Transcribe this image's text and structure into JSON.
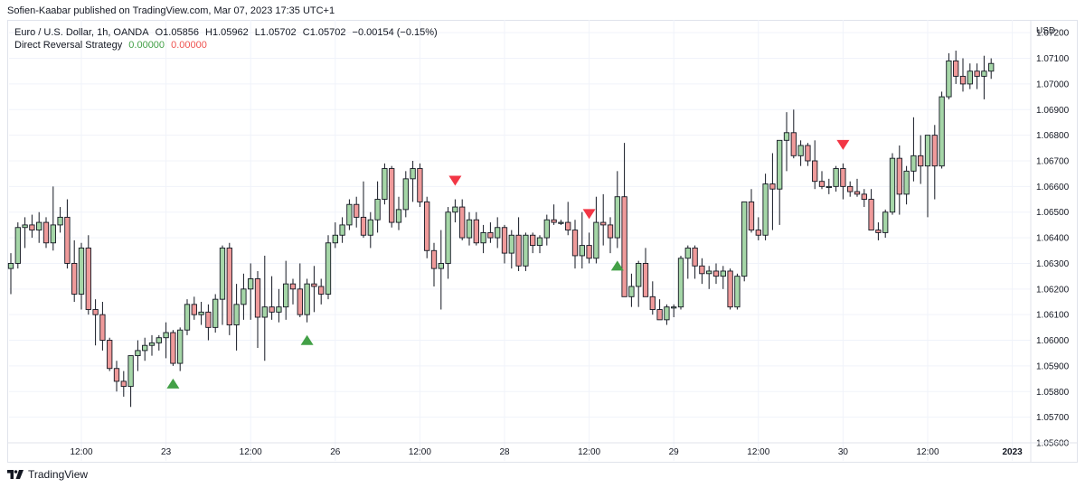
{
  "header": {
    "published": "Sofien-Kaabar published on TradingView.com, Mar 07, 2023 17:35 UTC+1"
  },
  "legend": {
    "symbol": "Euro / U.S. Dollar, 1h, OANDA",
    "open": "O1.05856",
    "high": "H1.05962",
    "low": "L1.05702",
    "close": "C1.05702",
    "change": "−0.00154 (−0.15%)",
    "indicator_name": "Direct Reversal Strategy",
    "indicator_value_1": "0.00000",
    "indicator_value_2": "0.00000"
  },
  "footer": {
    "brand": "TradingView"
  },
  "colors": {
    "bull_fill": "#a5d6a7",
    "bear_fill": "#ef9a9a",
    "outline": "#131722",
    "buy_signal": "#43a047",
    "sell_signal": "#f23645",
    "grid": "#f0f3fa"
  },
  "chart_data": {
    "type": "candlestick",
    "currency": "USD",
    "ylim": [
      1.056,
      1.0725
    ],
    "y_ticks": [
      "1.07200",
      "1.07100",
      "1.07000",
      "1.06900",
      "1.06800",
      "1.06700",
      "1.06600",
      "1.06500",
      "1.06400",
      "1.06300",
      "1.06200",
      "1.06100",
      "1.06000",
      "1.05900",
      "1.05800",
      "1.05700",
      "1.05600"
    ],
    "x_ticks": [
      {
        "label": "12:00",
        "index": 10
      },
      {
        "label": "23",
        "index": 22
      },
      {
        "label": "12:00",
        "index": 34
      },
      {
        "label": "26",
        "index": 46
      },
      {
        "label": "12:00",
        "index": 58
      },
      {
        "label": "28",
        "index": 70
      },
      {
        "label": "12:00",
        "index": 82
      },
      {
        "label": "29",
        "index": 94
      },
      {
        "label": "12:00",
        "index": 106
      },
      {
        "label": "30",
        "index": 118
      },
      {
        "label": "12:00",
        "index": 130
      },
      {
        "label": "2023",
        "index": 142
      }
    ],
    "candles": [
      [
        1.0628,
        1.0634,
        1.0618,
        1.063
      ],
      [
        1.063,
        1.0646,
        1.0628,
        1.0644
      ],
      [
        1.0644,
        1.0648,
        1.0636,
        1.0645
      ],
      [
        1.0645,
        1.0649,
        1.064,
        1.0643
      ],
      [
        1.0643,
        1.065,
        1.0638,
        1.0646
      ],
      [
        1.0646,
        1.0648,
        1.0636,
        1.0638
      ],
      [
        1.0638,
        1.066,
        1.0635,
        1.0645
      ],
      [
        1.0645,
        1.0652,
        1.0642,
        1.0648
      ],
      [
        1.0648,
        1.0655,
        1.0628,
        1.063
      ],
      [
        1.063,
        1.0639,
        1.0615,
        1.0618
      ],
      [
        1.0618,
        1.0638,
        1.0612,
        1.0636
      ],
      [
        1.0636,
        1.0641,
        1.061,
        1.0612
      ],
      [
        1.0612,
        1.0616,
        1.0598,
        1.061
      ],
      [
        1.061,
        1.0615,
        1.0596,
        1.06
      ],
      [
        1.06,
        1.0601,
        1.0588,
        1.0589
      ],
      [
        1.0589,
        1.0592,
        1.058,
        1.0584
      ],
      [
        1.0584,
        1.0588,
        1.0578,
        1.0582
      ],
      [
        1.0582,
        1.0594,
        1.0574,
        1.0594
      ],
      [
        1.0594,
        1.06,
        1.0588,
        1.0596
      ],
      [
        1.0596,
        1.0601,
        1.0592,
        1.0598
      ],
      [
        1.0598,
        1.0602,
        1.0594,
        1.0599
      ],
      [
        1.0599,
        1.0602,
        1.0596,
        1.0601
      ],
      [
        1.0601,
        1.0607,
        1.0593,
        1.0603
      ],
      [
        1.0603,
        1.0604,
        1.059,
        1.0591
      ],
      [
        1.0591,
        1.0605,
        1.0588,
        1.0604
      ],
      [
        1.0604,
        1.0616,
        1.0602,
        1.0614
      ],
      [
        1.0614,
        1.0617,
        1.0608,
        1.061
      ],
      [
        1.061,
        1.0615,
        1.0606,
        1.0611
      ],
      [
        1.0611,
        1.0614,
        1.06,
        1.0605
      ],
      [
        1.0605,
        1.0618,
        1.0603,
        1.0616
      ],
      [
        1.0616,
        1.0637,
        1.0606,
        1.0636
      ],
      [
        1.0636,
        1.0638,
        1.0602,
        1.0606
      ],
      [
        1.0606,
        1.0622,
        1.0596,
        1.0614
      ],
      [
        1.0614,
        1.0626,
        1.0608,
        1.062
      ],
      [
        1.062,
        1.063,
        1.0608,
        1.0624
      ],
      [
        1.0624,
        1.0627,
        1.0597,
        1.0609
      ],
      [
        1.0609,
        1.0633,
        1.0592,
        1.0613
      ],
      [
        1.0613,
        1.0625,
        1.0608,
        1.0611
      ],
      [
        1.0611,
        1.062,
        1.0607,
        1.0613
      ],
      [
        1.0613,
        1.0631,
        1.0608,
        1.0622
      ],
      [
        1.0622,
        1.0624,
        1.0614,
        1.062
      ],
      [
        1.062,
        1.063,
        1.0609,
        1.061
      ],
      [
        1.061,
        1.0624,
        1.0607,
        1.0622
      ],
      [
        1.0622,
        1.0629,
        1.0611,
        1.0621
      ],
      [
        1.0621,
        1.0624,
        1.0614,
        1.0618
      ],
      [
        1.0618,
        1.0641,
        1.0616,
        1.0638
      ],
      [
        1.0638,
        1.0646,
        1.0636,
        1.0641
      ],
      [
        1.0641,
        1.0648,
        1.0638,
        1.0645
      ],
      [
        1.0645,
        1.0655,
        1.0643,
        1.0653
      ],
      [
        1.0653,
        1.0656,
        1.0644,
        1.0648
      ],
      [
        1.0648,
        1.0662,
        1.064,
        1.0641
      ],
      [
        1.0641,
        1.065,
        1.0636,
        1.0647
      ],
      [
        1.0647,
        1.0662,
        1.0642,
        1.0655
      ],
      [
        1.0655,
        1.0669,
        1.0653,
        1.0667
      ],
      [
        1.0667,
        1.0668,
        1.0644,
        1.0646
      ],
      [
        1.0646,
        1.0656,
        1.0643,
        1.0651
      ],
      [
        1.0651,
        1.0666,
        1.0648,
        1.0663
      ],
      [
        1.0663,
        1.067,
        1.0654,
        1.0667
      ],
      [
        1.0667,
        1.0669,
        1.0652,
        1.0654
      ],
      [
        1.0654,
        1.0656,
        1.0632,
        1.0635
      ],
      [
        1.0635,
        1.0638,
        1.0621,
        1.0628
      ],
      [
        1.0628,
        1.0643,
        1.0612,
        1.063
      ],
      [
        1.063,
        1.0652,
        1.0624,
        1.065
      ],
      [
        1.065,
        1.0655,
        1.0646,
        1.0652
      ],
      [
        1.0652,
        1.0655,
        1.0639,
        1.064
      ],
      [
        1.064,
        1.065,
        1.0637,
        1.0647
      ],
      [
        1.0647,
        1.065,
        1.0637,
        1.0638
      ],
      [
        1.0638,
        1.0645,
        1.0634,
        1.0642
      ],
      [
        1.0642,
        1.0646,
        1.0638,
        1.064
      ],
      [
        1.064,
        1.0648,
        1.0636,
        1.0644
      ],
      [
        1.0644,
        1.0645,
        1.063,
        1.0634
      ],
      [
        1.0634,
        1.0643,
        1.0628,
        1.0641
      ],
      [
        1.0641,
        1.0648,
        1.0627,
        1.0629
      ],
      [
        1.0629,
        1.0642,
        1.0627,
        1.0641
      ],
      [
        1.0641,
        1.0642,
        1.0634,
        1.0637
      ],
      [
        1.0637,
        1.0641,
        1.0634,
        1.064
      ],
      [
        1.064,
        1.0649,
        1.0637,
        1.0647
      ],
      [
        1.0647,
        1.0653,
        1.0645,
        1.0646
      ],
      [
        1.0646,
        1.0647,
        1.0645,
        1.0646
      ],
      [
        1.0646,
        1.0654,
        1.0641,
        1.0643
      ],
      [
        1.0643,
        1.0647,
        1.0628,
        1.0633
      ],
      [
        1.0633,
        1.065,
        1.0628,
        1.0637
      ],
      [
        1.0637,
        1.0642,
        1.063,
        1.0632
      ],
      [
        1.0632,
        1.0656,
        1.063,
        1.0646
      ],
      [
        1.0646,
        1.0657,
        1.0637,
        1.0645
      ],
      [
        1.0645,
        1.0648,
        1.0634,
        1.064
      ],
      [
        1.064,
        1.0666,
        1.0636,
        1.0656
      ],
      [
        1.0656,
        1.0677,
        1.0617,
        1.0617
      ],
      [
        1.0617,
        1.0626,
        1.0613,
        1.0621
      ],
      [
        1.0621,
        1.0631,
        1.0613,
        1.063
      ],
      [
        1.063,
        1.0636,
        1.0617,
        1.0617
      ],
      [
        1.0617,
        1.0623,
        1.061,
        1.0612
      ],
      [
        1.0612,
        1.0616,
        1.0608,
        1.0608
      ],
      [
        1.0608,
        1.0614,
        1.0606,
        1.0613
      ],
      [
        1.0613,
        1.0614,
        1.0609,
        1.0613
      ],
      [
        1.0613,
        1.0633,
        1.0612,
        1.0632
      ],
      [
        1.0632,
        1.0637,
        1.0624,
        1.0636
      ],
      [
        1.0636,
        1.0637,
        1.0624,
        1.0629
      ],
      [
        1.0629,
        1.0632,
        1.0622,
        1.0626
      ],
      [
        1.0626,
        1.0629,
        1.062,
        1.0627
      ],
      [
        1.0627,
        1.063,
        1.0622,
        1.0625
      ],
      [
        1.0625,
        1.0629,
        1.062,
        1.0627
      ],
      [
        1.0627,
        1.0628,
        1.0612,
        1.0613
      ],
      [
        1.0613,
        1.0626,
        1.0612,
        1.0625
      ],
      [
        1.0625,
        1.0654,
        1.0623,
        1.0654
      ],
      [
        1.0654,
        1.0659,
        1.0642,
        1.0643
      ],
      [
        1.0643,
        1.0648,
        1.0639,
        1.0641
      ],
      [
        1.0641,
        1.0665,
        1.0639,
        1.0661
      ],
      [
        1.0661,
        1.0673,
        1.0643,
        1.0659
      ],
      [
        1.0659,
        1.0678,
        1.0645,
        1.0678
      ],
      [
        1.0678,
        1.0689,
        1.0666,
        1.0681
      ],
      [
        1.0681,
        1.069,
        1.0671,
        1.0672
      ],
      [
        1.0672,
        1.0678,
        1.0668,
        1.0676
      ],
      [
        1.0676,
        1.0677,
        1.0668,
        1.067
      ],
      [
        1.067,
        1.0678,
        1.0659,
        1.0662
      ],
      [
        1.0662,
        1.0666,
        1.0659,
        1.066
      ],
      [
        1.066,
        1.0663,
        1.0657,
        1.066
      ],
      [
        1.066,
        1.0668,
        1.0658,
        1.0667
      ],
      [
        1.0667,
        1.0669,
        1.0655,
        1.066
      ],
      [
        1.066,
        1.0662,
        1.0656,
        1.0658
      ],
      [
        1.0658,
        1.0663,
        1.0656,
        1.0657
      ],
      [
        1.0657,
        1.0659,
        1.0652,
        1.0655
      ],
      [
        1.0655,
        1.0659,
        1.0643,
        1.0643
      ],
      [
        1.0643,
        1.0646,
        1.0639,
        1.0642
      ],
      [
        1.0642,
        1.0651,
        1.064,
        1.065
      ],
      [
        1.065,
        1.0673,
        1.0649,
        1.0671
      ],
      [
        1.0671,
        1.0676,
        1.0649,
        1.0657
      ],
      [
        1.0657,
        1.0668,
        1.0653,
        1.0666
      ],
      [
        1.0666,
        1.0687,
        1.0662,
        1.0672
      ],
      [
        1.0672,
        1.068,
        1.0661,
        1.0668
      ],
      [
        1.0668,
        1.068,
        1.0648,
        1.068
      ],
      [
        1.068,
        1.0684,
        1.0655,
        1.0668
      ],
      [
        1.0668,
        1.0697,
        1.0667,
        1.0695
      ],
      [
        1.0695,
        1.0712,
        1.0694,
        1.0709
      ],
      [
        1.0709,
        1.0713,
        1.07,
        1.0703
      ],
      [
        1.0703,
        1.071,
        1.0697,
        1.07
      ],
      [
        1.07,
        1.0708,
        1.0698,
        1.0705
      ],
      [
        1.0705,
        1.0708,
        1.0698,
        1.0703
      ],
      [
        1.0703,
        1.0711,
        1.0694,
        1.0705
      ],
      [
        1.0705,
        1.071,
        1.0702,
        1.0708
      ]
    ],
    "signals": [
      {
        "type": "buy",
        "index": 23
      },
      {
        "type": "buy",
        "index": 42
      },
      {
        "type": "sell",
        "index": 63
      },
      {
        "type": "sell",
        "index": 82
      },
      {
        "type": "buy",
        "index": 86
      },
      {
        "type": "sell",
        "index": 118
      }
    ]
  }
}
